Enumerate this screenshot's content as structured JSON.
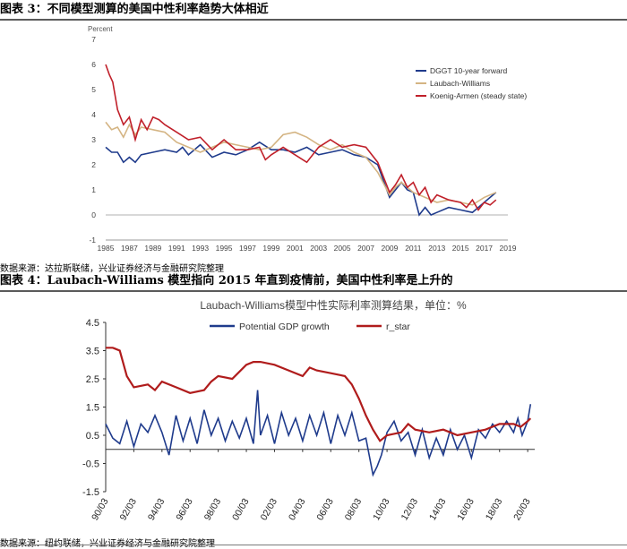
{
  "figure1": {
    "title": "图表 3：不同模型测算的美国中性利率趋势大体相近",
    "source": "数据来源：达拉斯联储，兴业证券经济与金融研究院整理"
  },
  "figure2": {
    "title": "图表 4：Laubach-Williams 模型指向 2015 年直到疫情前，美国中性利率是上升的",
    "source": "数据来源：纽约联储，兴业证券经济与金融研究院整理"
  },
  "chart_data": [
    {
      "type": "line",
      "title": "",
      "ylabel": "Percent",
      "xlabel": "",
      "xlim": [
        1985,
        2019
      ],
      "ylim": [
        -1,
        7
      ],
      "x_ticks": [
        "1985",
        "1987",
        "1989",
        "1991",
        "1993",
        "1995",
        "1997",
        "1999",
        "2001",
        "2003",
        "2005",
        "2007",
        "2009",
        "2011",
        "2013",
        "2015",
        "2017",
        "2019"
      ],
      "y_ticks": [
        "-1",
        "0",
        "1",
        "2",
        "3",
        "4",
        "5",
        "6",
        "7"
      ],
      "grid": false,
      "legend": "top-right",
      "series": [
        {
          "name": "DGGT 10-year forward",
          "color": "#1f3b8c",
          "points": [
            [
              1985,
              2.7
            ],
            [
              1985.5,
              2.5
            ],
            [
              1986,
              2.5
            ],
            [
              1986.5,
              2.1
            ],
            [
              1987,
              2.3
            ],
            [
              1987.5,
              2.1
            ],
            [
              1988,
              2.4
            ],
            [
              1989,
              2.5
            ],
            [
              1990,
              2.6
            ],
            [
              1991,
              2.5
            ],
            [
              1991.5,
              2.7
            ],
            [
              1992,
              2.4
            ],
            [
              1993,
              2.8
            ],
            [
              1994,
              2.3
            ],
            [
              1995,
              2.5
            ],
            [
              1996,
              2.4
            ],
            [
              1997,
              2.6
            ],
            [
              1998,
              2.9
            ],
            [
              1999,
              2.6
            ],
            [
              2000,
              2.6
            ],
            [
              2001,
              2.5
            ],
            [
              2002,
              2.7
            ],
            [
              2003,
              2.4
            ],
            [
              2004,
              2.5
            ],
            [
              2005,
              2.6
            ],
            [
              2006,
              2.4
            ],
            [
              2007,
              2.3
            ],
            [
              2008,
              2.0
            ],
            [
              2009,
              0.7
            ],
            [
              2009.5,
              1.0
            ],
            [
              2010,
              1.3
            ],
            [
              2010.5,
              1.0
            ],
            [
              2011,
              0.9
            ],
            [
              2011.5,
              0.0
            ],
            [
              2012,
              0.3
            ],
            [
              2012.5,
              0.0
            ],
            [
              2013,
              0.1
            ],
            [
              2014,
              0.3
            ],
            [
              2015,
              0.2
            ],
            [
              2016,
              0.1
            ],
            [
              2017,
              0.5
            ],
            [
              2017.5,
              0.7
            ],
            [
              2018,
              0.9
            ]
          ]
        },
        {
          "name": "Laubach-Williams",
          "color": "#d4b483",
          "points": [
            [
              1985,
              3.7
            ],
            [
              1985.5,
              3.4
            ],
            [
              1986,
              3.5
            ],
            [
              1986.5,
              3.1
            ],
            [
              1987,
              3.6
            ],
            [
              1987.5,
              3.2
            ],
            [
              1988,
              3.5
            ],
            [
              1989,
              3.4
            ],
            [
              1990,
              3.3
            ],
            [
              1991,
              2.9
            ],
            [
              1992,
              2.7
            ],
            [
              1993,
              2.5
            ],
            [
              1994,
              2.7
            ],
            [
              1995,
              2.9
            ],
            [
              1996,
              2.8
            ],
            [
              1997,
              2.7
            ],
            [
              1998,
              2.6
            ],
            [
              1999,
              2.7
            ],
            [
              2000,
              3.2
            ],
            [
              2001,
              3.3
            ],
            [
              2002,
              3.1
            ],
            [
              2003,
              2.8
            ],
            [
              2004,
              2.6
            ],
            [
              2005,
              2.8
            ],
            [
              2006,
              2.5
            ],
            [
              2007,
              2.3
            ],
            [
              2008,
              1.7
            ],
            [
              2009,
              0.8
            ],
            [
              2009.5,
              1.1
            ],
            [
              2010,
              1.3
            ],
            [
              2011,
              0.9
            ],
            [
              2012,
              0.7
            ],
            [
              2013,
              0.5
            ],
            [
              2014,
              0.6
            ],
            [
              2015,
              0.5
            ],
            [
              2016,
              0.4
            ],
            [
              2017,
              0.7
            ],
            [
              2018,
              0.9
            ]
          ]
        },
        {
          "name": "Koenig-Armen (steady state)",
          "color": "#c0202a",
          "points": [
            [
              1985,
              6.0
            ],
            [
              1985.3,
              5.6
            ],
            [
              1985.6,
              5.3
            ],
            [
              1986,
              4.2
            ],
            [
              1986.5,
              3.6
            ],
            [
              1987,
              3.9
            ],
            [
              1987.5,
              3.0
            ],
            [
              1988,
              3.8
            ],
            [
              1988.5,
              3.4
            ],
            [
              1989,
              3.9
            ],
            [
              1989.5,
              3.8
            ],
            [
              1990,
              3.6
            ],
            [
              1991,
              3.3
            ],
            [
              1992,
              3.0
            ],
            [
              1993,
              3.1
            ],
            [
              1994,
              2.6
            ],
            [
              1995,
              3.0
            ],
            [
              1996,
              2.6
            ],
            [
              1997,
              2.6
            ],
            [
              1998,
              2.7
            ],
            [
              1998.5,
              2.2
            ],
            [
              1999,
              2.4
            ],
            [
              2000,
              2.7
            ],
            [
              2001,
              2.4
            ],
            [
              2002,
              2.1
            ],
            [
              2003,
              2.7
            ],
            [
              2004,
              3.0
            ],
            [
              2005,
              2.7
            ],
            [
              2006,
              2.8
            ],
            [
              2007,
              2.7
            ],
            [
              2008,
              2.1
            ],
            [
              2008.5,
              1.5
            ],
            [
              2009,
              0.9
            ],
            [
              2009.5,
              1.2
            ],
            [
              2010,
              1.6
            ],
            [
              2010.5,
              1.1
            ],
            [
              2011,
              1.3
            ],
            [
              2011.5,
              0.8
            ],
            [
              2012,
              1.1
            ],
            [
              2012.5,
              0.5
            ],
            [
              2013,
              0.8
            ],
            [
              2014,
              0.6
            ],
            [
              2015,
              0.5
            ],
            [
              2015.5,
              0.3
            ],
            [
              2016,
              0.6
            ],
            [
              2016.5,
              0.2
            ],
            [
              2017,
              0.5
            ],
            [
              2017.5,
              0.4
            ],
            [
              2018,
              0.6
            ]
          ]
        }
      ]
    },
    {
      "type": "line",
      "title": "Laubach-Williams模型中性实际利率测算结果，单位：%",
      "xlabel": "",
      "ylabel": "",
      "xlim": [
        1990,
        2020.5
      ],
      "ylim": [
        -1.5,
        4.5
      ],
      "x_ticks": [
        "90/03",
        "92/03",
        "94/03",
        "96/03",
        "98/03",
        "00/03",
        "02/03",
        "04/03",
        "06/03",
        "08/03",
        "10/03",
        "12/03",
        "14/03",
        "16/03",
        "18/03",
        "20/03"
      ],
      "y_ticks": [
        "4.5",
        "3.5",
        "2.5",
        "1.5",
        "0.5",
        "-0.5",
        "-1.5"
      ],
      "grid": false,
      "legend": "top",
      "series": [
        {
          "name": "Potential GDP growth",
          "color": "#1f3b8c",
          "points": [
            [
              1990,
              0.9
            ],
            [
              1990.5,
              0.4
            ],
            [
              1991,
              0.2
            ],
            [
              1991.5,
              1.0
            ],
            [
              1992,
              0.1
            ],
            [
              1992.5,
              0.9
            ],
            [
              1993,
              0.6
            ],
            [
              1993.5,
              1.2
            ],
            [
              1994,
              0.6
            ],
            [
              1994.5,
              -0.2
            ],
            [
              1995,
              1.2
            ],
            [
              1995.5,
              0.3
            ],
            [
              1996,
              1.1
            ],
            [
              1996.5,
              0.2
            ],
            [
              1997,
              1.4
            ],
            [
              1997.5,
              0.5
            ],
            [
              1998,
              1.1
            ],
            [
              1998.5,
              0.3
            ],
            [
              1999,
              1.0
            ],
            [
              1999.5,
              0.4
            ],
            [
              2000,
              1.1
            ],
            [
              2000.5,
              0.2
            ],
            [
              2000.8,
              2.1
            ],
            [
              2001,
              0.5
            ],
            [
              2001.5,
              1.2
            ],
            [
              2002,
              0.2
            ],
            [
              2002.5,
              1.3
            ],
            [
              2003,
              0.5
            ],
            [
              2003.5,
              1.1
            ],
            [
              2004,
              0.3
            ],
            [
              2004.5,
              1.2
            ],
            [
              2005,
              0.5
            ],
            [
              2005.5,
              1.3
            ],
            [
              2006,
              0.2
            ],
            [
              2006.5,
              1.2
            ],
            [
              2007,
              0.5
            ],
            [
              2007.5,
              1.3
            ],
            [
              2008,
              0.3
            ],
            [
              2008.5,
              0.4
            ],
            [
              2009,
              -0.9
            ],
            [
              2009.3,
              -0.6
            ],
            [
              2009.6,
              -0.2
            ],
            [
              2010,
              0.6
            ],
            [
              2010.5,
              1.0
            ],
            [
              2011,
              0.3
            ],
            [
              2011.5,
              0.6
            ],
            [
              2012,
              -0.2
            ],
            [
              2012.5,
              0.7
            ],
            [
              2013,
              -0.3
            ],
            [
              2013.5,
              0.4
            ],
            [
              2014,
              -0.2
            ],
            [
              2014.5,
              0.7
            ],
            [
              2015,
              0.0
            ],
            [
              2015.5,
              0.5
            ],
            [
              2016,
              -0.3
            ],
            [
              2016.5,
              0.7
            ],
            [
              2017,
              0.4
            ],
            [
              2017.5,
              0.9
            ],
            [
              2018,
              0.6
            ],
            [
              2018.5,
              1.0
            ],
            [
              2019,
              0.6
            ],
            [
              2019.3,
              1.1
            ],
            [
              2019.6,
              0.5
            ],
            [
              2020,
              1.0
            ],
            [
              2020.2,
              1.6
            ]
          ]
        },
        {
          "name": "r_star",
          "color": "#b01c1c",
          "points": [
            [
              1990,
              3.6
            ],
            [
              1990.5,
              3.6
            ],
            [
              1991,
              3.5
            ],
            [
              1991.5,
              2.6
            ],
            [
              1992,
              2.2
            ],
            [
              1993,
              2.3
            ],
            [
              1993.5,
              2.1
            ],
            [
              1994,
              2.4
            ],
            [
              1995,
              2.2
            ],
            [
              1996,
              2.0
            ],
            [
              1997,
              2.1
            ],
            [
              1997.5,
              2.4
            ],
            [
              1998,
              2.6
            ],
            [
              1999,
              2.5
            ],
            [
              2000,
              3.0
            ],
            [
              2000.5,
              3.1
            ],
            [
              2001,
              3.1
            ],
            [
              2002,
              3.0
            ],
            [
              2003,
              2.8
            ],
            [
              2004,
              2.6
            ],
            [
              2004.5,
              2.9
            ],
            [
              2005,
              2.8
            ],
            [
              2006,
              2.7
            ],
            [
              2007,
              2.6
            ],
            [
              2007.5,
              2.3
            ],
            [
              2008,
              1.8
            ],
            [
              2008.5,
              1.2
            ],
            [
              2009,
              0.7
            ],
            [
              2009.5,
              0.3
            ],
            [
              2010,
              0.5
            ],
            [
              2011,
              0.6
            ],
            [
              2011.5,
              0.9
            ],
            [
              2012,
              0.7
            ],
            [
              2013,
              0.6
            ],
            [
              2014,
              0.7
            ],
            [
              2015,
              0.5
            ],
            [
              2016,
              0.6
            ],
            [
              2017,
              0.7
            ],
            [
              2018,
              0.9
            ],
            [
              2019,
              0.9
            ],
            [
              2019.5,
              0.8
            ],
            [
              2020,
              1.0
            ],
            [
              2020.2,
              1.1
            ]
          ]
        }
      ]
    }
  ]
}
